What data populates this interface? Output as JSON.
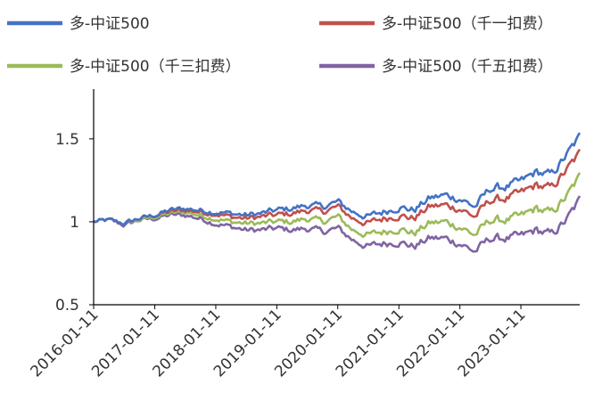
{
  "chart_data": {
    "type": "line",
    "title": "",
    "xlabel": "",
    "ylabel": "",
    "ylim": [
      0.5,
      1.8
    ],
    "yticks": [
      "0.5",
      "1",
      "1.5"
    ],
    "xticks": [
      "2016-01-11",
      "2017-01-11",
      "2018-01-11",
      "2019-01-11",
      "2020-01-11",
      "2021-01-11",
      "2022-01-11",
      "2023-01-11"
    ],
    "legend_position": "top",
    "grid": false,
    "x": [
      "2016-01-11",
      "2016-04-11",
      "2016-07-11",
      "2016-10-11",
      "2017-01-11",
      "2017-04-11",
      "2017-07-11",
      "2017-10-11",
      "2018-01-11",
      "2018-04-11",
      "2018-07-11",
      "2018-10-11",
      "2019-01-11",
      "2019-04-11",
      "2019-07-11",
      "2019-10-11",
      "2020-01-11",
      "2020-04-11",
      "2020-07-11",
      "2020-10-11",
      "2021-01-11",
      "2021-04-11",
      "2021-07-11",
      "2021-10-11",
      "2022-01-11",
      "2022-04-11",
      "2022-07-11",
      "2022-10-11",
      "2023-01-11",
      "2023-04-11",
      "2023-07-11",
      "2023-10-11",
      "2023-12-29"
    ],
    "series": [
      {
        "name": "多-中证500",
        "color": "#4472C4",
        "values": [
          1.0,
          1.01,
          0.99,
          1.02,
          1.04,
          1.07,
          1.08,
          1.07,
          1.06,
          1.05,
          1.04,
          1.05,
          1.07,
          1.08,
          1.1,
          1.09,
          1.12,
          1.06,
          1.03,
          1.06,
          1.09,
          1.07,
          1.14,
          1.16,
          1.14,
          1.09,
          1.2,
          1.21,
          1.24,
          1.3,
          1.28,
          1.4,
          1.51
        ]
      },
      {
        "name": "多-中证500（千一扣费）",
        "color": "#C0504D",
        "values": [
          1.0,
          1.01,
          0.99,
          1.02,
          1.04,
          1.06,
          1.07,
          1.06,
          1.05,
          1.03,
          1.02,
          1.03,
          1.04,
          1.05,
          1.07,
          1.06,
          1.09,
          1.02,
          0.99,
          1.02,
          1.04,
          1.02,
          1.09,
          1.1,
          1.08,
          1.03,
          1.13,
          1.14,
          1.17,
          1.22,
          1.2,
          1.31,
          1.41
        ]
      },
      {
        "name": "多-中证500（千三扣费）",
        "color": "#9BBB59",
        "values": [
          1.0,
          1.01,
          0.99,
          1.01,
          1.03,
          1.05,
          1.06,
          1.04,
          1.02,
          1.0,
          0.99,
          0.99,
          1.0,
          1.0,
          1.02,
          1.0,
          1.03,
          0.95,
          0.92,
          0.94,
          0.96,
          0.93,
          0.99,
          1.0,
          0.97,
          0.92,
          1.01,
          1.01,
          1.03,
          1.08,
          1.05,
          1.15,
          1.27
        ]
      },
      {
        "name": "多-中证500（千五扣费）",
        "color": "#8064A2",
        "values": [
          1.0,
          1.01,
          0.98,
          1.01,
          1.02,
          1.04,
          1.04,
          1.02,
          0.99,
          0.97,
          0.95,
          0.95,
          0.96,
          0.95,
          0.96,
          0.94,
          0.96,
          0.89,
          0.85,
          0.87,
          0.88,
          0.85,
          0.9,
          0.9,
          0.87,
          0.82,
          0.9,
          0.9,
          0.91,
          0.95,
          0.92,
          1.01,
          1.13
        ]
      }
    ]
  }
}
